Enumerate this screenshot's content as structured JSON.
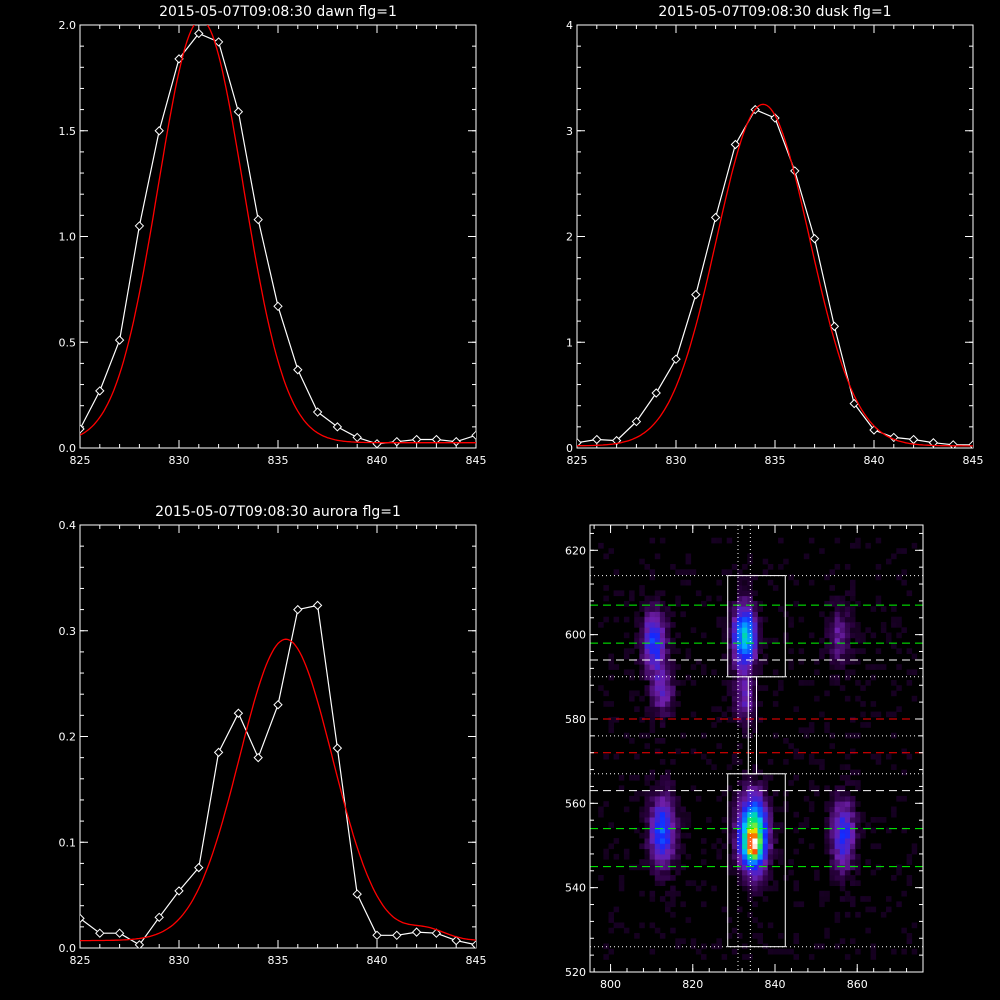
{
  "chart_data": [
    {
      "type": "line",
      "title": "2015-05-07T09:08:30 dawn flg=1",
      "xlim": [
        825,
        845
      ],
      "ylim": [
        0,
        2.0
      ],
      "xticks": [
        825,
        830,
        835,
        840,
        845
      ],
      "yticks": [
        0.0,
        0.5,
        1.0,
        1.5,
        2.0
      ],
      "ytick_labels": [
        "0.0",
        "0.5",
        "1.0",
        "1.5",
        "2.0"
      ],
      "series": [
        {
          "kind": "data",
          "color": "#ffffff",
          "marker": "diamond",
          "x": [
            825,
            826,
            827,
            828,
            829,
            830,
            831,
            832,
            833,
            834,
            835,
            836,
            837,
            838,
            839,
            840,
            841,
            842,
            843,
            844,
            845
          ],
          "y": [
            0.09,
            0.27,
            0.51,
            1.05,
            1.5,
            1.84,
            1.96,
            1.92,
            1.59,
            1.08,
            0.67,
            0.37,
            0.17,
            0.1,
            0.05,
            0.02,
            0.03,
            0.04,
            0.04,
            0.03,
            0.06
          ]
        },
        {
          "kind": "fit",
          "color": "#ff0000",
          "shape": "gaussian",
          "peak": 2.0,
          "center": 831.1,
          "sigma": 2.15,
          "offset": 0.025
        }
      ]
    },
    {
      "type": "line",
      "title": "2015-05-07T09:08:30 dusk flg=1",
      "xlim": [
        825,
        845
      ],
      "ylim": [
        0,
        4
      ],
      "xticks": [
        825,
        830,
        835,
        840,
        845
      ],
      "yticks": [
        0,
        1,
        2,
        3,
        4
      ],
      "ytick_labels": [
        "0",
        "1",
        "2",
        "3",
        "4"
      ],
      "series": [
        {
          "kind": "data",
          "color": "#ffffff",
          "marker": "diamond",
          "x": [
            825,
            826,
            827,
            828,
            829,
            830,
            831,
            832,
            833,
            834,
            835,
            836,
            837,
            838,
            839,
            840,
            841,
            842,
            843,
            844,
            845
          ],
          "y": [
            0.05,
            0.08,
            0.07,
            0.25,
            0.52,
            0.84,
            1.45,
            2.18,
            2.87,
            3.2,
            3.12,
            2.62,
            1.98,
            1.15,
            0.42,
            0.17,
            0.1,
            0.08,
            0.05,
            0.03,
            0.03
          ]
        },
        {
          "kind": "fit",
          "color": "#ff0000",
          "shape": "gaussian",
          "peak": 3.23,
          "center": 834.4,
          "sigma": 2.35,
          "offset": 0.02
        }
      ]
    },
    {
      "type": "line",
      "title": "2015-05-07T09:08:30 aurora flg=1",
      "xlim": [
        825,
        845
      ],
      "ylim": [
        0,
        0.4
      ],
      "xticks": [
        825,
        830,
        835,
        840,
        845
      ],
      "yticks": [
        0.0,
        0.1,
        0.2,
        0.3,
        0.4
      ],
      "ytick_labels": [
        "0.0",
        "0.1",
        "0.2",
        "0.3",
        "0.4"
      ],
      "series": [
        {
          "kind": "data",
          "color": "#ffffff",
          "marker": "diamond",
          "x": [
            825,
            826,
            827,
            828,
            829,
            830,
            831,
            832,
            833,
            834,
            835,
            836,
            837,
            838,
            839,
            840,
            841,
            842,
            843,
            844,
            845
          ],
          "y": [
            0.028,
            0.014,
            0.014,
            0.003,
            0.029,
            0.054,
            0.076,
            0.185,
            0.222,
            0.18,
            0.23,
            0.32,
            0.324,
            0.189,
            0.051,
            0.012,
            0.012,
            0.015,
            0.014,
            0.007,
            0.003
          ]
        },
        {
          "kind": "fit",
          "color": "#ff0000",
          "shape": "gaussian_plus_bump",
          "peak": 0.285,
          "center": 835.4,
          "sigma": 2.35,
          "offset": 0.007,
          "bump_peak": 0.01,
          "bump_center": 842.5,
          "bump_sigma": 1.0
        }
      ]
    },
    {
      "type": "heatmap",
      "title": "",
      "xlim": [
        795,
        876
      ],
      "ylim": [
        520,
        626
      ],
      "xticks": [
        800,
        820,
        840,
        860
      ],
      "yticks": [
        520,
        540,
        560,
        580,
        600,
        620
      ],
      "blobs": [
        {
          "x": 810,
          "y": 598,
          "sx": 2.0,
          "sy": 5,
          "amp": 0.38
        },
        {
          "x": 812,
          "y": 586,
          "sx": 2.0,
          "sy": 4,
          "amp": 0.22
        },
        {
          "x": 812,
          "y": 553,
          "sx": 2.2,
          "sy": 6,
          "amp": 0.4
        },
        {
          "x": 832,
          "y": 599,
          "sx": 2.0,
          "sy": 5,
          "amp": 0.58
        },
        {
          "x": 832,
          "y": 584,
          "sx": 1.8,
          "sy": 4,
          "amp": 0.22
        },
        {
          "x": 834,
          "y": 552,
          "sx": 2.4,
          "sy": 6,
          "amp": 0.8
        },
        {
          "x": 834,
          "y": 549,
          "sx": 1.2,
          "sy": 2,
          "amp": 0.3
        },
        {
          "x": 855,
          "y": 599,
          "sx": 2.0,
          "sy": 5,
          "amp": 0.18
        },
        {
          "x": 856,
          "y": 552,
          "sx": 2.0,
          "sy": 6,
          "amp": 0.34
        }
      ],
      "h_lines": [
        {
          "y": 614,
          "color": "#ffffff",
          "style": "dotted"
        },
        {
          "y": 607,
          "color": "#00ff00",
          "style": "dashed"
        },
        {
          "y": 598,
          "color": "#00ff00",
          "style": "dashed"
        },
        {
          "y": 594,
          "color": "#ffffff",
          "style": "dashed"
        },
        {
          "y": 590,
          "color": "#ffffff",
          "style": "dotted"
        },
        {
          "y": 580,
          "color": "#ff0000",
          "style": "dashed"
        },
        {
          "y": 576,
          "color": "#ffffff",
          "style": "dotted"
        },
        {
          "y": 572,
          "color": "#ff0000",
          "style": "dashed"
        },
        {
          "y": 567,
          "color": "#ffffff",
          "style": "dotted"
        },
        {
          "y": 563,
          "color": "#ffffff",
          "style": "dashed"
        },
        {
          "y": 554,
          "color": "#00ff00",
          "style": "dashed"
        },
        {
          "y": 545,
          "color": "#00ff00",
          "style": "dashed"
        },
        {
          "y": 526,
          "color": "#ffffff",
          "style": "dotted"
        }
      ],
      "v_lines": [
        {
          "x": 831,
          "color": "#ffffff",
          "style": "dotted"
        },
        {
          "x": 834,
          "color": "#ffffff",
          "style": "dotted"
        }
      ],
      "rects": [
        {
          "x0": 828.5,
          "x1": 842.5,
          "y0": 590,
          "y1": 614
        },
        {
          "x0": 833.5,
          "x1": 835.5,
          "y0": 567,
          "y1": 590
        },
        {
          "x0": 828.5,
          "x1": 842.5,
          "y0": 526,
          "y1": 567
        }
      ]
    }
  ]
}
